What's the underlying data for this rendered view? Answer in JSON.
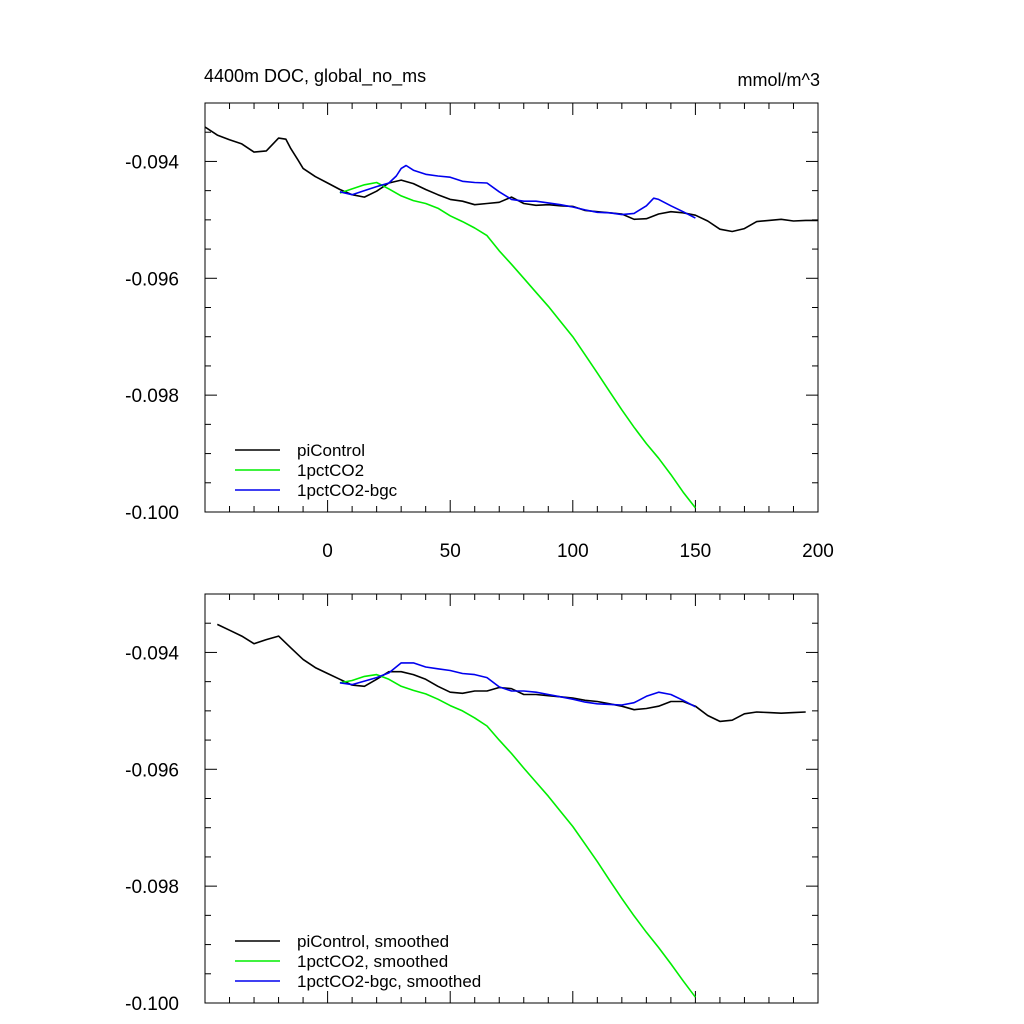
{
  "figure": {
    "title": "4400m DOC, global_no_ms",
    "units": "mmol/m^3"
  },
  "chart_data": [
    {
      "type": "line",
      "title": "4400m DOC, global_no_ms",
      "units": "mmol/m^3",
      "xlim": [
        -50,
        200
      ],
      "ylim": [
        -0.1,
        -0.093
      ],
      "x_ticks": [
        0,
        50,
        100,
        150,
        200
      ],
      "x_tick_labels": [
        "0",
        "50",
        "100",
        "150",
        "200"
      ],
      "y_ticks": [
        -0.1,
        -0.098,
        -0.096,
        -0.094
      ],
      "y_tick_labels": [
        "-0.100",
        "-0.098",
        "-0.096",
        "-0.094"
      ],
      "grid": false,
      "legend_position": "bottom-left",
      "series": [
        {
          "name": "piControl",
          "color": "#000000",
          "x": [
            -50,
            -45,
            -40,
            -35,
            -30,
            -25,
            -20,
            -17,
            -15,
            -12,
            -10,
            -5,
            0,
            5,
            10,
            15,
            20,
            25,
            30,
            35,
            40,
            45,
            50,
            55,
            60,
            65,
            70,
            75,
            80,
            85,
            90,
            95,
            100,
            105,
            110,
            115,
            120,
            125,
            130,
            135,
            140,
            145,
            150,
            155,
            160,
            165,
            170,
            175,
            180,
            185,
            190,
            195,
            200
          ],
          "y": [
            -0.09341,
            -0.09355,
            -0.09363,
            -0.0937,
            -0.09384,
            -0.09382,
            -0.0936,
            -0.09362,
            -0.09378,
            -0.09398,
            -0.09412,
            -0.09426,
            -0.09437,
            -0.09448,
            -0.09457,
            -0.09461,
            -0.09451,
            -0.09437,
            -0.09432,
            -0.09438,
            -0.09448,
            -0.09457,
            -0.09465,
            -0.09468,
            -0.09474,
            -0.09472,
            -0.0947,
            -0.09461,
            -0.09472,
            -0.09475,
            -0.09474,
            -0.09476,
            -0.09477,
            -0.09484,
            -0.09486,
            -0.09488,
            -0.0949,
            -0.09499,
            -0.09498,
            -0.0949,
            -0.09486,
            -0.09488,
            -0.09492,
            -0.09502,
            -0.09516,
            -0.0952,
            -0.09515,
            -0.09503,
            -0.09501,
            -0.09499,
            -0.09502,
            -0.09501,
            -0.09501
          ]
        },
        {
          "name": "1pctCO2",
          "color": "#00ee00",
          "x": [
            5,
            10,
            15,
            20,
            25,
            30,
            35,
            40,
            45,
            50,
            55,
            60,
            65,
            70,
            75,
            80,
            85,
            90,
            95,
            100,
            105,
            110,
            115,
            120,
            125,
            130,
            135,
            140,
            145,
            150
          ],
          "y": [
            -0.09454,
            -0.09447,
            -0.0944,
            -0.09436,
            -0.09447,
            -0.09459,
            -0.09467,
            -0.09472,
            -0.0948,
            -0.09493,
            -0.09503,
            -0.09514,
            -0.09527,
            -0.09553,
            -0.09576,
            -0.096,
            -0.09624,
            -0.09648,
            -0.09674,
            -0.097,
            -0.09731,
            -0.09762,
            -0.09794,
            -0.09825,
            -0.09855,
            -0.09883,
            -0.09908,
            -0.09936,
            -0.09966,
            -0.09993
          ]
        },
        {
          "name": "1pctCO2-bgc",
          "color": "#0000ee",
          "x": [
            5,
            10,
            15,
            20,
            25,
            28,
            30,
            32,
            35,
            40,
            45,
            50,
            55,
            60,
            65,
            70,
            75,
            80,
            85,
            90,
            95,
            100,
            105,
            110,
            115,
            120,
            125,
            130,
            133,
            135,
            140,
            145,
            150
          ],
          "y": [
            -0.09452,
            -0.09457,
            -0.0945,
            -0.09443,
            -0.09437,
            -0.09425,
            -0.09412,
            -0.09407,
            -0.09415,
            -0.09422,
            -0.09425,
            -0.09427,
            -0.09434,
            -0.09436,
            -0.09437,
            -0.09452,
            -0.09465,
            -0.09468,
            -0.09468,
            -0.09471,
            -0.09474,
            -0.09478,
            -0.09483,
            -0.09487,
            -0.09488,
            -0.09491,
            -0.09489,
            -0.09476,
            -0.09463,
            -0.09465,
            -0.09476,
            -0.09486,
            -0.09497
          ]
        }
      ]
    },
    {
      "type": "line",
      "xlim": [
        -50,
        200
      ],
      "ylim": [
        -0.1,
        -0.093
      ],
      "y_ticks": [
        -0.1,
        -0.098,
        -0.096,
        -0.094
      ],
      "y_tick_labels": [
        "-0.100",
        "-0.098",
        "-0.096",
        "-0.094"
      ],
      "grid": false,
      "legend_position": "bottom-left",
      "series": [
        {
          "name": "piControl, smoothed",
          "color": "#000000",
          "x": [
            -45,
            -40,
            -35,
            -30,
            -25,
            -20,
            -15,
            -10,
            -5,
            0,
            5,
            10,
            15,
            20,
            25,
            30,
            35,
            40,
            45,
            50,
            55,
            60,
            65,
            70,
            75,
            80,
            85,
            90,
            95,
            100,
            105,
            110,
            115,
            120,
            125,
            130,
            135,
            140,
            145,
            150,
            155,
            160,
            165,
            170,
            175,
            180,
            185,
            190,
            195
          ],
          "y": [
            -0.09352,
            -0.09362,
            -0.09372,
            -0.09385,
            -0.09378,
            -0.09372,
            -0.09392,
            -0.09412,
            -0.09426,
            -0.09436,
            -0.09446,
            -0.09456,
            -0.09458,
            -0.09446,
            -0.09433,
            -0.09433,
            -0.09438,
            -0.09446,
            -0.09458,
            -0.09468,
            -0.0947,
            -0.09466,
            -0.09466,
            -0.0946,
            -0.09462,
            -0.09472,
            -0.09472,
            -0.09474,
            -0.09476,
            -0.09478,
            -0.09482,
            -0.09484,
            -0.09488,
            -0.09492,
            -0.09498,
            -0.09496,
            -0.09492,
            -0.09484,
            -0.09484,
            -0.09492,
            -0.09508,
            -0.09518,
            -0.09516,
            -0.09505,
            -0.09502,
            -0.09503,
            -0.09504,
            -0.09503,
            -0.09502
          ]
        },
        {
          "name": "1pctCO2, smoothed",
          "color": "#00ee00",
          "x": [
            5,
            10,
            15,
            20,
            25,
            30,
            35,
            40,
            45,
            50,
            55,
            60,
            65,
            70,
            75,
            80,
            85,
            90,
            95,
            100,
            105,
            110,
            115,
            120,
            125,
            130,
            135,
            140,
            145,
            150
          ],
          "y": [
            -0.09452,
            -0.09448,
            -0.09441,
            -0.09438,
            -0.09446,
            -0.09458,
            -0.09465,
            -0.09471,
            -0.0948,
            -0.09491,
            -0.095,
            -0.09512,
            -0.09526,
            -0.0955,
            -0.09573,
            -0.09598,
            -0.09622,
            -0.09646,
            -0.09672,
            -0.09698,
            -0.09728,
            -0.09758,
            -0.0979,
            -0.09821,
            -0.09851,
            -0.09879,
            -0.09905,
            -0.09933,
            -0.09962,
            -0.0999
          ]
        },
        {
          "name": "1pctCO2-bgc, smoothed",
          "color": "#0000ee",
          "x": [
            5,
            10,
            15,
            20,
            25,
            30,
            35,
            40,
            45,
            50,
            55,
            60,
            65,
            70,
            75,
            80,
            85,
            90,
            95,
            100,
            105,
            110,
            115,
            120,
            125,
            130,
            135,
            140,
            145,
            150
          ],
          "y": [
            -0.09452,
            -0.09455,
            -0.09449,
            -0.09443,
            -0.09435,
            -0.09418,
            -0.09418,
            -0.09425,
            -0.09428,
            -0.09431,
            -0.09436,
            -0.09438,
            -0.09443,
            -0.09459,
            -0.09466,
            -0.09466,
            -0.09468,
            -0.09472,
            -0.09476,
            -0.0948,
            -0.09485,
            -0.09488,
            -0.09489,
            -0.0949,
            -0.09486,
            -0.09475,
            -0.09468,
            -0.09472,
            -0.09482,
            -0.09493
          ]
        }
      ]
    }
  ]
}
